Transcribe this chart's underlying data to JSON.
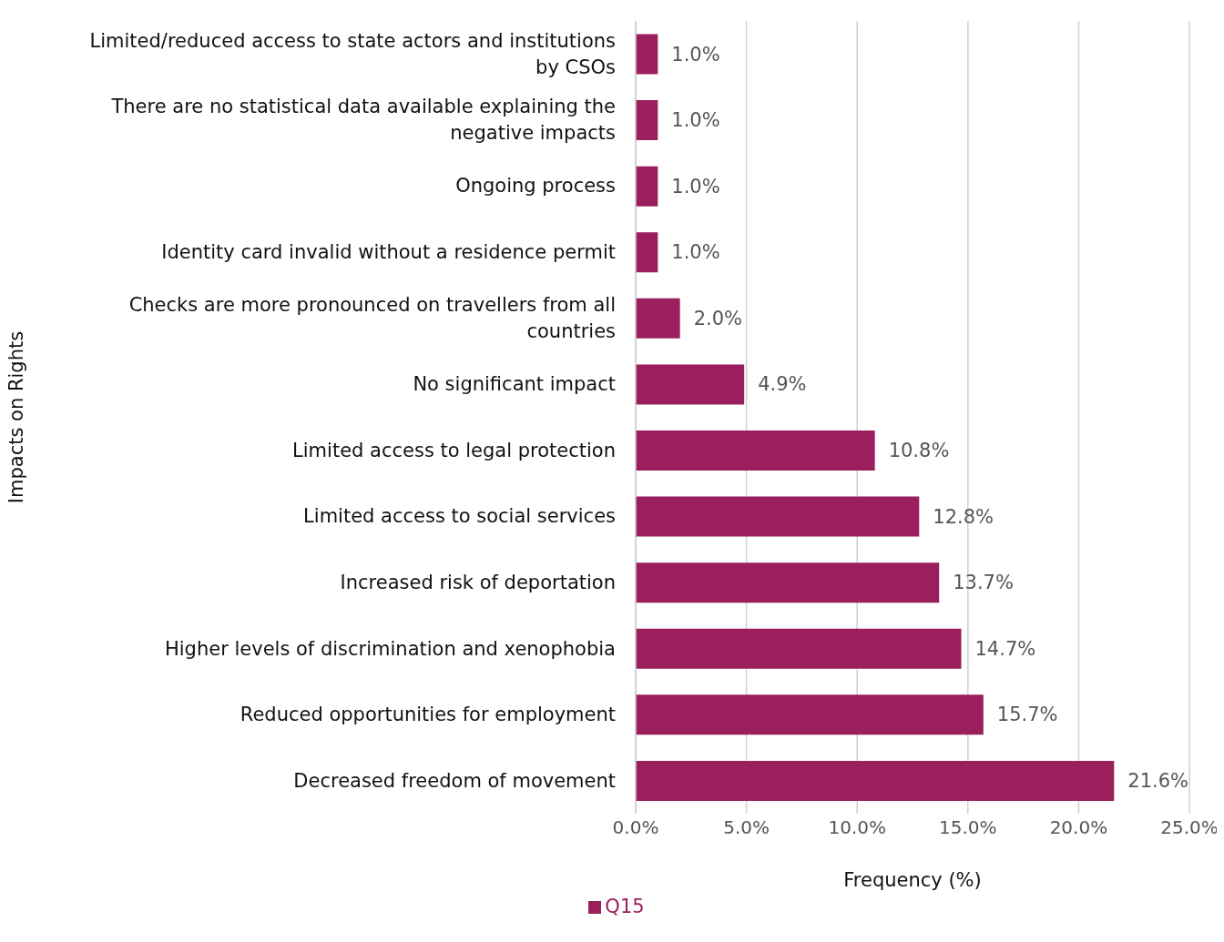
{
  "chart_data": {
    "type": "bar",
    "orientation": "horizontal",
    "xlabel": "Frequency (%)",
    "ylabel": "Impacts on Rights",
    "categories": [
      "Limited/reduced access to state actors and institutions by CSOs",
      "There are no statistical data available explaining the negative impacts",
      "Ongoing process",
      "Identity card invalid without a residence permit",
      "Checks are more pronounced on travellers from all countries",
      "No significant impact",
      "Limited access to legal protection",
      "Limited access to social services",
      "Increased risk of deportation",
      "Higher levels of discrimination and xenophobia",
      "Reduced opportunities for employment",
      "Decreased freedom of movement"
    ],
    "series": [
      {
        "name": "Q15",
        "color": "#9b1f5c",
        "values": [
          1.0,
          1.0,
          1.0,
          1.0,
          2.0,
          4.9,
          10.8,
          12.8,
          13.7,
          14.7,
          15.7,
          21.6
        ],
        "value_labels": [
          "1.0%",
          "1.0%",
          "1.0%",
          "1.0%",
          "2.0%",
          "4.9%",
          "10.8%",
          "12.8%",
          "13.7%",
          "14.7%",
          "15.7%",
          "21.6%"
        ]
      }
    ],
    "xlim": [
      0,
      25
    ],
    "xticks": [
      {
        "value": 0,
        "label": "0.0%"
      },
      {
        "value": 5,
        "label": "5.0%"
      },
      {
        "value": 10,
        "label": "10.0%"
      },
      {
        "value": 15,
        "label": "15.0%"
      },
      {
        "value": 20,
        "label": "20.0%"
      },
      {
        "value": 25,
        "label": "25.0%"
      }
    ],
    "grid": "x",
    "legend": "bottom"
  }
}
